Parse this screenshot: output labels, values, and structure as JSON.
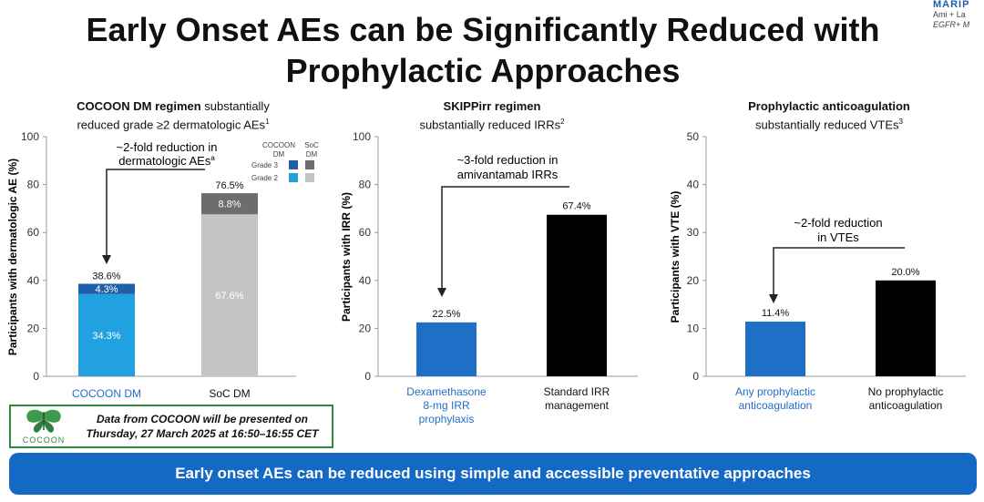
{
  "title_line1": "Early Onset AEs can be Significantly Reduced with",
  "title_line2": "Prophylactic Approaches",
  "corner_logo": {
    "line1": "MARIP",
    "line2": "Ami + La",
    "line3": "EGFR+ M"
  },
  "colors": {
    "cocoon_grade3": "#1f5fa8",
    "cocoon_grade2": "#22a1e0",
    "soc_grade3": "#6d6d6d",
    "soc_grade2": "#c4c4c4",
    "blue_bar": "#1f6fc6",
    "black_bar": "#000000",
    "banner": "#1469c4"
  },
  "panels": {
    "p1": {
      "head_bold": "COCOON DM regimen",
      "head_rest1": " substantially",
      "head_line2": "reduced grade ≥2 dermatologic AEs",
      "head_sup": "1",
      "legend_col1": [
        "COCOON",
        "DM"
      ],
      "legend_col2": [
        "SoC",
        "DM"
      ],
      "legend_row1": "Grade 3",
      "legend_row2": "Grade 2",
      "annotation_line1": "~2-fold reduction in",
      "annotation_line2": "dermatologic AEs",
      "annotation_sup": "a"
    },
    "p2": {
      "head_bold": "SKIPPirr regimen",
      "head_line2": "substantially reduced IRRs",
      "head_sup": "2",
      "annotation_line1": "~3-fold reduction in",
      "annotation_line2": "amivantamab IRRs"
    },
    "p3": {
      "head_bold": "Prophylactic anticoagulation",
      "head_line2": "substantially reduced VTEs",
      "head_sup": "3",
      "annotation_line1": "~2-fold reduction",
      "annotation_line2": "in VTEs"
    }
  },
  "chart_data": [
    {
      "type": "bar",
      "stacked": true,
      "ylabel": "Participants with dermatologic AE (%)",
      "ylim": [
        0,
        100
      ],
      "yticks": [
        0,
        20,
        40,
        60,
        80,
        100
      ],
      "categories": [
        "COCOON DM",
        "SoC DM"
      ],
      "series": [
        {
          "name": "Grade 2",
          "values": [
            34.3,
            67.6
          ],
          "labels": [
            "34.3%",
            "67.6%"
          ]
        },
        {
          "name": "Grade 3",
          "values": [
            4.3,
            8.8
          ],
          "labels": [
            "4.3%",
            "8.8%"
          ]
        }
      ],
      "totals": [
        38.6,
        76.5
      ],
      "total_labels": [
        "38.6%",
        "76.5%"
      ]
    },
    {
      "type": "bar",
      "ylabel": "Participants with IRR (%)",
      "ylim": [
        0,
        100
      ],
      "yticks": [
        0,
        20,
        40,
        60,
        80,
        100
      ],
      "categories": [
        [
          "Dexamethasone",
          "8-mg IRR",
          "prophylaxis"
        ],
        [
          "Standard IRR",
          "management"
        ]
      ],
      "values": [
        22.5,
        67.4
      ],
      "labels": [
        "22.5%",
        "67.4%"
      ]
    },
    {
      "type": "bar",
      "ylabel": "Participants with VTE (%)",
      "ylim": [
        0,
        50
      ],
      "yticks": [
        0,
        10,
        20,
        30,
        40,
        50
      ],
      "categories": [
        [
          "Any prophylactic",
          "anticoagulation"
        ],
        [
          "No prophylactic",
          "anticoagulation"
        ]
      ],
      "values": [
        11.4,
        20.0
      ],
      "labels": [
        "11.4%",
        "20.0%"
      ]
    }
  ],
  "cocoon_box": {
    "logo_name": "COCOON",
    "line1": "Data from COCOON will be presented on",
    "line2": "Thursday, 27 March 2025 at 16:50–16:55 CET"
  },
  "banner": "Early onset AEs can be reduced using simple and accessible preventative approaches"
}
